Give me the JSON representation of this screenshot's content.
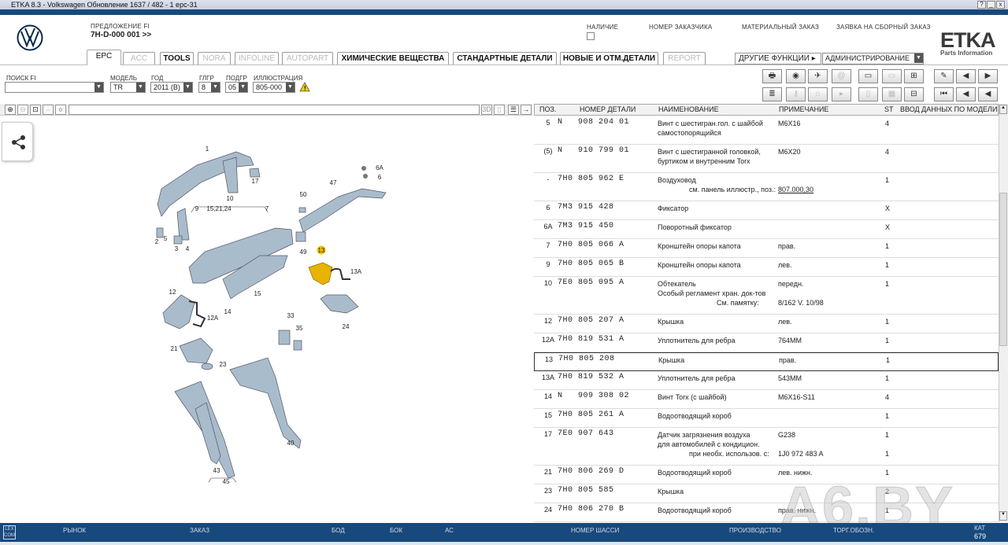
{
  "window": {
    "title": "ETKA 8.3 - Volkswagen Обновление 1637 / 482 - 1 epc-31",
    "controls": [
      "?",
      "_",
      "б",
      "x"
    ]
  },
  "header": {
    "offer_label": "ПРЕДЛОЖЕНИЕ FI",
    "offer_value": "7H-D-000 001 >>",
    "availability": "НАЛИЧИЕ",
    "customer_number": "НОМЕР ЗАКАЗЧИКА",
    "material_order": "МАТЕРИАЛЬНЫЙ ЗАКАЗ",
    "assembly_order": "ЗАЯВКА НА СБОРНЫЙ ЗАКАЗ",
    "logo": "ETKA",
    "logo_sub": "Parts Information"
  },
  "tabs": [
    {
      "label": "EPC",
      "state": "active"
    },
    {
      "label": "ACC",
      "state": "disabled"
    },
    {
      "label": "TOOLS",
      "state": "enabled"
    },
    {
      "label": "NORA",
      "state": "disabled"
    },
    {
      "label": "INFOLINE",
      "state": "disabled"
    },
    {
      "label": "AUTOPART",
      "state": "disabled"
    },
    {
      "label": "ХИМИЧЕСКИЕ ВЕЩЕСТВА",
      "state": "enabled"
    },
    {
      "label": "СТАНДАРТНЫЕ ДЕТАЛИ",
      "state": "enabled"
    },
    {
      "label": "НОВЫЕ И ОТМ.ДЕТАЛИ",
      "state": "enabled"
    },
    {
      "label": "REPORT",
      "state": "disabled"
    }
  ],
  "other_functions": {
    "label": "ДРУГИЕ ФУНКЦИИ ▸",
    "value": "АДМИНИСТРИРОВАНИЕ"
  },
  "filters": {
    "search": {
      "label": "ПОИСК FI",
      "value": ""
    },
    "model": {
      "label": "МОДЕЛЬ",
      "value": "TR"
    },
    "year": {
      "label": "ГОД",
      "value": "2011 (B)"
    },
    "main_group": {
      "label": "ГЛГР",
      "value": "8"
    },
    "sub_group": {
      "label": "ПОДГР",
      "value": "05"
    },
    "illustration": {
      "label": "ИЛЛЮСТРАЦИЯ",
      "value": "805-000"
    }
  },
  "viewer": {
    "mode_3d": "3D"
  },
  "table": {
    "headers": {
      "pos": "ПОЗ.",
      "part_number": "НОМЕР ДЕТАЛИ",
      "name": "НАИМЕНОВАНИЕ",
      "note": "ПРИМЕЧАНИЕ",
      "qty": "ST",
      "model_data": "ВВОД ДАННЫХ ПО МОДЕЛИ"
    },
    "rows": [
      {
        "pos": "5",
        "pn": "N   908 204 01",
        "name": [
          "Винт с шестигран.гол. с шайбой",
          "самостопорящийся"
        ],
        "note": [
          "M6X16"
        ],
        "qty": [
          "4"
        ]
      },
      {
        "pos": "(5)",
        "pn": "N   910 799 01",
        "name": [
          "Винт с шестигранной головкой,",
          "буртиком и внутренним Torx"
        ],
        "note": [
          "M6X20"
        ],
        "qty": [
          "4"
        ]
      },
      {
        "pos": "-",
        "pn": "7H0 805 962 E",
        "name": [
          "Воздуховод",
          "                см. панель иллюстр., поз.:"
        ],
        "note": [
          "",
          "807.000,30"
        ],
        "qty": [
          "1"
        ]
      },
      {
        "pos": "6",
        "pn": "7M3 915 428",
        "name": [
          "Фиксатор"
        ],
        "note": [
          ""
        ],
        "qty": [
          "X"
        ]
      },
      {
        "pos": "6A",
        "pn": "7M3 915 450",
        "name": [
          "Поворотный фиксатор"
        ],
        "note": [
          ""
        ],
        "qty": [
          "X"
        ]
      },
      {
        "pos": "7",
        "pn": "7H0 805 066 A",
        "name": [
          "Кронштейн опоры капота"
        ],
        "note": [
          "прав."
        ],
        "qty": [
          "1"
        ]
      },
      {
        "pos": "9",
        "pn": "7H0 805 065 B",
        "name": [
          "Кронштейн опоры капота"
        ],
        "note": [
          "лев."
        ],
        "qty": [
          "1"
        ]
      },
      {
        "pos": "10",
        "pn": "7E0 805 095 A",
        "name": [
          "Обтекатель",
          "Особый регламент хран. док-тов",
          "                              См. памятку:"
        ],
        "note": [
          "передн.",
          "",
          "8/162 V. 10/98"
        ],
        "qty": [
          "1"
        ]
      },
      {
        "pos": "12",
        "pn": "7H0 805 207 A",
        "name": [
          "Крышка"
        ],
        "note": [
          "лев."
        ],
        "qty": [
          "1"
        ]
      },
      {
        "pos": "12A",
        "pn": "7H0 819 531 A",
        "name": [
          "Уплотнитель для ребра"
        ],
        "note": [
          "764MM"
        ],
        "qty": [
          "1"
        ]
      },
      {
        "pos": "13",
        "pn": "7H0 805 208",
        "name": [
          "Крышка"
        ],
        "note": [
          "прав."
        ],
        "qty": [
          "1"
        ],
        "selected": true
      },
      {
        "pos": "13A",
        "pn": "7H0 819 532 A",
        "name": [
          "Уплотнитель для ребра"
        ],
        "note": [
          "543MM"
        ],
        "qty": [
          "1"
        ]
      },
      {
        "pos": "14",
        "pn": "N   909 308 02",
        "name": [
          "Винт Torx (с шайбой)"
        ],
        "note": [
          "M6X16-S11"
        ],
        "qty": [
          "4"
        ]
      },
      {
        "pos": "15",
        "pn": "7H0 805 261 A",
        "name": [
          "Водоотводящий короб"
        ],
        "note": [
          ""
        ],
        "qty": [
          "1"
        ]
      },
      {
        "pos": "17",
        "pn": "7E0 907 643",
        "name": [
          "Датчик загрязнения воздуха",
          "для автомобилей с кондицион.",
          "                при необх. использов. с:"
        ],
        "note": [
          "G238",
          "",
          "1J0 972 483 A"
        ],
        "qty": [
          "1",
          "",
          "1"
        ]
      },
      {
        "pos": "21",
        "pn": "7H0 806 269 D",
        "name": [
          "Водоотводящий короб"
        ],
        "note": [
          "лев. нижн."
        ],
        "qty": [
          "1"
        ]
      },
      {
        "pos": "23",
        "pn": "7H0 805 585",
        "name": [
          "Крышка"
        ],
        "note": [
          ""
        ],
        "qty": [
          "2"
        ]
      },
      {
        "pos": "24",
        "pn": "7H0 806 270 B",
        "name": [
          "Водоотводящий короб"
        ],
        "note": [
          "прав. нижн."
        ],
        "qty": [
          "1"
        ]
      }
    ]
  },
  "diagram_labels": [
    "1",
    "17",
    "10",
    "9",
    "15,21,24",
    "7",
    "50",
    "47",
    "6A",
    "6",
    "2",
    "5",
    "3",
    "4",
    "49",
    "13",
    "13A",
    "12",
    "15",
    "14",
    "12A",
    "24",
    "33",
    "35",
    "21",
    "23",
    "40",
    "43",
    "45"
  ],
  "footer": {
    "lexcom": "LEX COM",
    "market": "РЫНОК",
    "order": "ЗАКАЗ",
    "bod": "БОД",
    "bok": "БОК",
    "ac": "АС",
    "chassis": "НОМЕР ШАССИ",
    "production": "ПРОИЗВОДСТВО",
    "trade": "ТОРГ.ОБОЗН.",
    "cat_label": "КАТ",
    "cat_value": "679"
  },
  "watermark": "A6.BY",
  "colors": {
    "brand_blue": "#17497d",
    "highlight": "#e8b400"
  }
}
